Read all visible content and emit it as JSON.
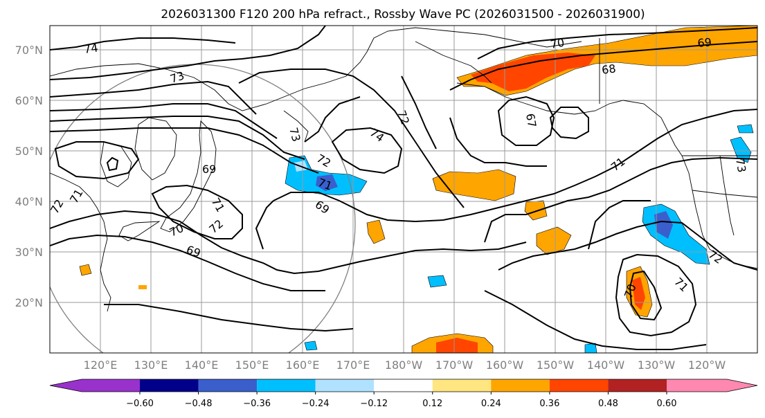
{
  "title": "2026031300 F120 200 hPa refract., Rossby Wave PC (2026031500 - 2026031900)",
  "map": {
    "lat_labels": [
      "70°N",
      "60°N",
      "50°N",
      "40°N",
      "30°N",
      "20°N"
    ],
    "lon_labels": [
      "120°E",
      "130°E",
      "140°E",
      "150°E",
      "160°E",
      "170°E",
      "180°W",
      "170°W",
      "160°W",
      "150°W",
      "140°W",
      "130°W",
      "120°W"
    ],
    "contour_labels": [
      "74",
      "73",
      "72",
      "71",
      "69",
      "70",
      "72",
      "69",
      "71",
      "72",
      "73",
      "71",
      "69",
      "74",
      "72",
      "67",
      "70",
      "68",
      "69",
      "71",
      "72",
      "71",
      "70",
      "73"
    ]
  },
  "colorbar": {
    "tick_labels": [
      "−0.60",
      "−0.48",
      "−0.36",
      "−0.24",
      "−0.12",
      "0.12",
      "0.24",
      "0.36",
      "0.48",
      "0.60"
    ],
    "colors": [
      "#9932cc",
      "#00008b",
      "#3a5fcd",
      "#00bfff",
      "#b0e2ff",
      "#ffffff",
      "#ffe680",
      "#ffa500",
      "#ff4500",
      "#b22222",
      "#ff88b0"
    ]
  }
}
